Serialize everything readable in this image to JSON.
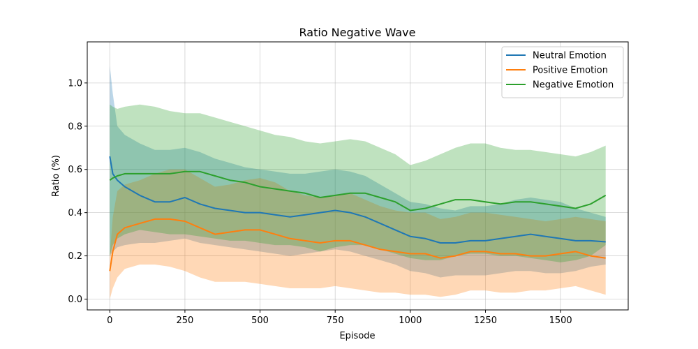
{
  "chart_data": {
    "type": "line",
    "title": "Ratio Negative Wave",
    "xlabel": "Episode",
    "ylabel": "Ratio (%)",
    "xlim": [
      -75,
      1725
    ],
    "ylim": [
      -0.05,
      1.19
    ],
    "xticks": [
      0,
      250,
      500,
      750,
      1000,
      1250,
      1500
    ],
    "yticks": [
      0.0,
      0.2,
      0.4,
      0.6,
      0.8,
      1.0
    ],
    "xtick_labels": [
      "0",
      "250",
      "500",
      "750",
      "1000",
      "1250",
      "1500"
    ],
    "ytick_labels": [
      "0.0",
      "0.2",
      "0.4",
      "0.6",
      "0.8",
      "1.0"
    ],
    "grid": true,
    "legend_position": "top-right",
    "x": [
      0,
      10,
      25,
      50,
      100,
      150,
      200,
      250,
      300,
      350,
      400,
      450,
      500,
      550,
      600,
      650,
      700,
      750,
      800,
      850,
      900,
      950,
      1000,
      1050,
      1100,
      1150,
      1200,
      1250,
      1300,
      1350,
      1400,
      1450,
      1500,
      1550,
      1600,
      1650
    ],
    "series": [
      {
        "name": "Neutral Emotion",
        "color": "#1f77b4",
        "band_color": "#1f77b4",
        "values": [
          0.66,
          0.58,
          0.55,
          0.52,
          0.48,
          0.45,
          0.45,
          0.47,
          0.44,
          0.42,
          0.41,
          0.4,
          0.4,
          0.39,
          0.38,
          0.39,
          0.4,
          0.41,
          0.4,
          0.38,
          0.35,
          0.32,
          0.29,
          0.28,
          0.26,
          0.26,
          0.27,
          0.27,
          0.28,
          0.29,
          0.3,
          0.29,
          0.28,
          0.27,
          0.27,
          0.265
        ],
        "lower": [
          0.2,
          0.22,
          0.24,
          0.25,
          0.26,
          0.26,
          0.27,
          0.28,
          0.26,
          0.25,
          0.24,
          0.23,
          0.22,
          0.21,
          0.2,
          0.21,
          0.22,
          0.23,
          0.22,
          0.2,
          0.18,
          0.16,
          0.13,
          0.12,
          0.1,
          0.11,
          0.11,
          0.11,
          0.12,
          0.13,
          0.13,
          0.12,
          0.12,
          0.13,
          0.15,
          0.16
        ],
        "upper": [
          1.08,
          0.95,
          0.8,
          0.76,
          0.72,
          0.69,
          0.69,
          0.7,
          0.68,
          0.65,
          0.63,
          0.61,
          0.6,
          0.59,
          0.58,
          0.58,
          0.59,
          0.6,
          0.59,
          0.57,
          0.53,
          0.49,
          0.45,
          0.44,
          0.42,
          0.41,
          0.43,
          0.43,
          0.44,
          0.46,
          0.47,
          0.46,
          0.45,
          0.42,
          0.4,
          0.38
        ]
      },
      {
        "name": "Positive Emotion",
        "color": "#ff7f0e",
        "band_color": "#ff7f0e",
        "values": [
          0.13,
          0.22,
          0.3,
          0.33,
          0.35,
          0.37,
          0.37,
          0.36,
          0.33,
          0.3,
          0.31,
          0.32,
          0.32,
          0.3,
          0.28,
          0.27,
          0.26,
          0.27,
          0.27,
          0.25,
          0.23,
          0.22,
          0.21,
          0.21,
          0.19,
          0.2,
          0.22,
          0.22,
          0.21,
          0.21,
          0.2,
          0.2,
          0.21,
          0.22,
          0.2,
          0.19
        ],
        "lower": [
          0.0,
          0.05,
          0.1,
          0.14,
          0.16,
          0.16,
          0.15,
          0.13,
          0.1,
          0.08,
          0.08,
          0.08,
          0.07,
          0.06,
          0.05,
          0.05,
          0.05,
          0.06,
          0.05,
          0.04,
          0.03,
          0.03,
          0.02,
          0.02,
          0.01,
          0.02,
          0.04,
          0.04,
          0.03,
          0.03,
          0.04,
          0.04,
          0.05,
          0.06,
          0.04,
          0.02
        ],
        "upper": [
          0.2,
          0.38,
          0.5,
          0.53,
          0.55,
          0.58,
          0.6,
          0.6,
          0.56,
          0.52,
          0.53,
          0.55,
          0.56,
          0.54,
          0.5,
          0.48,
          0.47,
          0.48,
          0.49,
          0.46,
          0.43,
          0.41,
          0.4,
          0.4,
          0.37,
          0.38,
          0.4,
          0.4,
          0.39,
          0.38,
          0.37,
          0.36,
          0.37,
          0.38,
          0.37,
          0.36
        ]
      },
      {
        "name": "Negative Emotion",
        "color": "#2ca02c",
        "band_color": "#2ca02c",
        "values": [
          0.55,
          0.56,
          0.57,
          0.58,
          0.58,
          0.58,
          0.58,
          0.59,
          0.59,
          0.57,
          0.55,
          0.54,
          0.52,
          0.51,
          0.5,
          0.49,
          0.47,
          0.48,
          0.49,
          0.49,
          0.47,
          0.45,
          0.41,
          0.42,
          0.44,
          0.46,
          0.46,
          0.45,
          0.44,
          0.45,
          0.45,
          0.44,
          0.43,
          0.42,
          0.44,
          0.48
        ],
        "lower": [
          0.2,
          0.25,
          0.28,
          0.3,
          0.32,
          0.31,
          0.3,
          0.3,
          0.29,
          0.28,
          0.27,
          0.27,
          0.26,
          0.25,
          0.25,
          0.24,
          0.22,
          0.24,
          0.25,
          0.25,
          0.23,
          0.21,
          0.19,
          0.18,
          0.18,
          0.2,
          0.21,
          0.21,
          0.2,
          0.2,
          0.19,
          0.18,
          0.17,
          0.18,
          0.2,
          0.25
        ],
        "upper": [
          0.9,
          0.89,
          0.88,
          0.89,
          0.9,
          0.89,
          0.87,
          0.86,
          0.86,
          0.84,
          0.82,
          0.8,
          0.78,
          0.76,
          0.75,
          0.73,
          0.72,
          0.73,
          0.74,
          0.73,
          0.7,
          0.67,
          0.62,
          0.64,
          0.67,
          0.7,
          0.72,
          0.72,
          0.7,
          0.69,
          0.69,
          0.68,
          0.67,
          0.66,
          0.68,
          0.71
        ]
      }
    ]
  }
}
